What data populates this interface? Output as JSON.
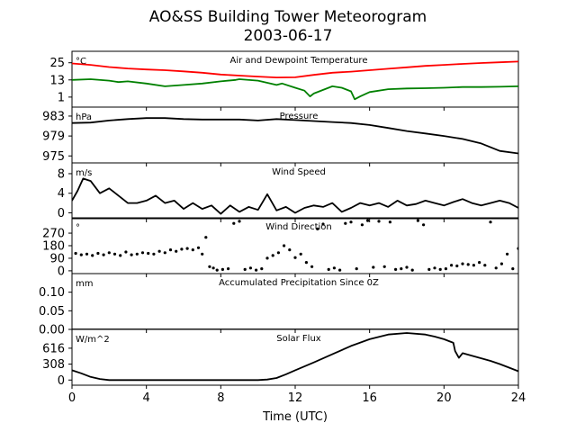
{
  "title_line1": "AO&SS Building Tower Meteorogram",
  "title_line2": "2003-06-17",
  "xlabel": "Time (UTC)",
  "colors": {
    "temperature": "#ff0000",
    "dewpoint": "#008000",
    "line": "#000000"
  },
  "chart_data": [
    {
      "type": "line",
      "panel": "temperature",
      "title": "Air and Dewpoint Temperature",
      "units": "°C",
      "xlim": [
        0,
        24
      ],
      "ylim": [
        -6,
        33
      ],
      "yticks": [
        25,
        13,
        1
      ],
      "series": [
        {
          "x": [
            0,
            1,
            2,
            3,
            4,
            5,
            6,
            7,
            8,
            9,
            10,
            11,
            12,
            13,
            14,
            15,
            16,
            17,
            18,
            19,
            20,
            21,
            22,
            23,
            24
          ],
          "y": [
            24.5,
            23.5,
            22,
            21,
            20.3,
            19.8,
            19,
            18,
            16.8,
            16,
            15.3,
            14.7,
            14.8,
            16.5,
            18,
            18.8,
            19.8,
            20.8,
            21.8,
            22.8,
            23.5,
            24.2,
            24.8,
            25.3,
            25.8
          ]
        },
        {
          "x": [
            0,
            1,
            2,
            2.5,
            3,
            4,
            5,
            6,
            7,
            8,
            8.8,
            9,
            10,
            11,
            11.3,
            12,
            12.5,
            12.8,
            13,
            14,
            14.5,
            15,
            15.2,
            15.5,
            16,
            17,
            18,
            19,
            20,
            21,
            22,
            23,
            24
          ],
          "y": [
            13,
            13.5,
            12.5,
            11.5,
            12,
            10.5,
            8.5,
            9.5,
            10.5,
            12,
            13,
            13.5,
            12.5,
            9.5,
            10.5,
            7.5,
            5.5,
            1.5,
            3.5,
            8.5,
            7.5,
            5,
            -0.5,
            1.5,
            4.5,
            6.5,
            7,
            7.2,
            7.5,
            8,
            8,
            8.2,
            8.5
          ]
        }
      ]
    },
    {
      "type": "line",
      "panel": "pressure",
      "title": "Pressure",
      "units": "hPa",
      "xlim": [
        0,
        24
      ],
      "ylim": [
        973.6,
        984.8
      ],
      "yticks": [
        983,
        979,
        975
      ],
      "x": [
        0,
        1,
        2,
        3,
        4,
        5,
        6,
        7,
        8,
        9,
        10,
        11,
        12,
        13,
        14,
        15,
        16,
        17,
        18,
        19,
        20,
        21,
        22,
        23,
        24
      ],
      "y": [
        981.6,
        981.7,
        982.1,
        982.4,
        982.6,
        982.6,
        982.4,
        982.3,
        982.3,
        982.3,
        982.1,
        982.4,
        982.2,
        982.0,
        981.8,
        981.6,
        981.2,
        980.6,
        980.0,
        979.5,
        979.0,
        978.4,
        977.5,
        976.0,
        975.5
      ]
    },
    {
      "type": "line",
      "panel": "wind_speed",
      "title": "Wind Speed",
      "units": "m/s",
      "xlim": [
        0,
        24
      ],
      "ylim": [
        -1.2,
        10.2
      ],
      "yticks": [
        8,
        4,
        0
      ],
      "x": [
        0,
        0.3,
        0.6,
        1,
        1.5,
        2,
        2.5,
        3,
        3.5,
        4,
        4.5,
        5,
        5.5,
        6,
        6.5,
        7,
        7.5,
        8,
        8.5,
        9,
        9.5,
        10,
        10.5,
        11,
        11.5,
        12,
        12.5,
        13,
        13.5,
        14,
        14.5,
        15,
        15.5,
        16,
        16.5,
        17,
        17.5,
        18,
        18.5,
        19,
        19.5,
        20,
        20.5,
        21,
        21.5,
        22,
        22.5,
        23,
        23.5,
        24
      ],
      "y": [
        2.5,
        4.5,
        7,
        6.5,
        4,
        5,
        3.5,
        2,
        2,
        2.5,
        3.5,
        2,
        2.5,
        0.8,
        2,
        0.8,
        1.5,
        -0.2,
        1.5,
        0.2,
        1.2,
        0.6,
        3.8,
        0.5,
        1.2,
        0,
        1,
        1.5,
        1.2,
        2,
        0.2,
        1,
        2,
        1.5,
        2,
        1.2,
        2.5,
        1.5,
        1.8,
        2.5,
        2,
        1.5,
        2.2,
        2.8,
        2,
        1.5,
        2,
        2.5,
        2,
        1
      ]
    },
    {
      "type": "scatter",
      "panel": "wind_direction",
      "title": "Wind Direction",
      "units": "°",
      "xlim": [
        0,
        24
      ],
      "ylim": [
        -20,
        380
      ],
      "yticks": [
        270,
        180,
        90,
        0
      ],
      "x": [
        0.2,
        0.5,
        0.8,
        1.1,
        1.4,
        1.7,
        2,
        2.3,
        2.6,
        2.9,
        3.2,
        3.5,
        3.8,
        4.1,
        4.4,
        4.7,
        5,
        5.3,
        5.6,
        5.9,
        6.2,
        6.5,
        6.8,
        7,
        7.2,
        7.4,
        7.6,
        7.8,
        8.1,
        8.4,
        8.7,
        9,
        9.3,
        9.6,
        9.9,
        10.2,
        10.5,
        10.8,
        11.1,
        11.4,
        11.7,
        12,
        12.3,
        12.6,
        12.9,
        13.2,
        13.5,
        13.8,
        14.1,
        14.4,
        14.7,
        15,
        15.3,
        15.6,
        15.9,
        16.2,
        16.5,
        16.8,
        17.1,
        17.4,
        17.7,
        18,
        18.3,
        18.6,
        18.9,
        19.2,
        19.5,
        19.8,
        20.1,
        20.4,
        20.7,
        21,
        21.3,
        21.6,
        21.9,
        22.2,
        22.5,
        22.8,
        23.1,
        23.4,
        23.7,
        24
      ],
      "y": [
        125,
        115,
        120,
        110,
        125,
        115,
        130,
        120,
        110,
        135,
        115,
        120,
        130,
        125,
        120,
        140,
        130,
        150,
        140,
        155,
        160,
        150,
        165,
        120,
        240,
        30,
        20,
        5,
        10,
        15,
        340,
        355,
        10,
        20,
        5,
        15,
        90,
        110,
        130,
        180,
        150,
        95,
        120,
        60,
        30,
        300,
        335,
        10,
        20,
        5,
        340,
        350,
        15,
        330,
        360,
        25,
        355,
        30,
        350,
        10,
        15,
        25,
        5,
        360,
        330,
        10,
        20,
        10,
        15,
        40,
        35,
        50,
        45,
        40,
        60,
        40,
        350,
        20,
        50,
        120,
        15,
        160
      ]
    },
    {
      "type": "line",
      "panel": "precipitation",
      "title": "Accumulated Precipitation Since 0Z",
      "units": "mm",
      "xlim": [
        0,
        24
      ],
      "ylim": [
        0,
        0.15
      ],
      "yticks": [
        0.1,
        0.05,
        0.0
      ],
      "x": [
        0,
        24
      ],
      "y": [
        0,
        0
      ]
    },
    {
      "type": "line",
      "panel": "solar_flux",
      "title": "Solar Flux",
      "units": "W/m^2",
      "xlim": [
        0,
        24
      ],
      "ylim": [
        -100,
        980
      ],
      "yticks": [
        616,
        308,
        0
      ],
      "xticks": [
        0,
        4,
        8,
        12,
        16,
        20,
        24
      ],
      "x": [
        0,
        0.5,
        1,
        1.5,
        2,
        3,
        4,
        5,
        6,
        7,
        8,
        9,
        10,
        10.5,
        11,
        11.5,
        12,
        13,
        14,
        15,
        16,
        17,
        18,
        19,
        19.5,
        20,
        20.5,
        20.6,
        20.8,
        21,
        21.5,
        22,
        22.5,
        23,
        23.5,
        24
      ],
      "y": [
        190,
        130,
        60,
        20,
        0,
        0,
        0,
        0,
        0,
        0,
        0,
        0,
        0,
        10,
        40,
        110,
        190,
        340,
        500,
        660,
        790,
        880,
        910,
        880,
        840,
        790,
        720,
        560,
        430,
        520,
        470,
        420,
        370,
        310,
        240,
        170
      ]
    }
  ]
}
